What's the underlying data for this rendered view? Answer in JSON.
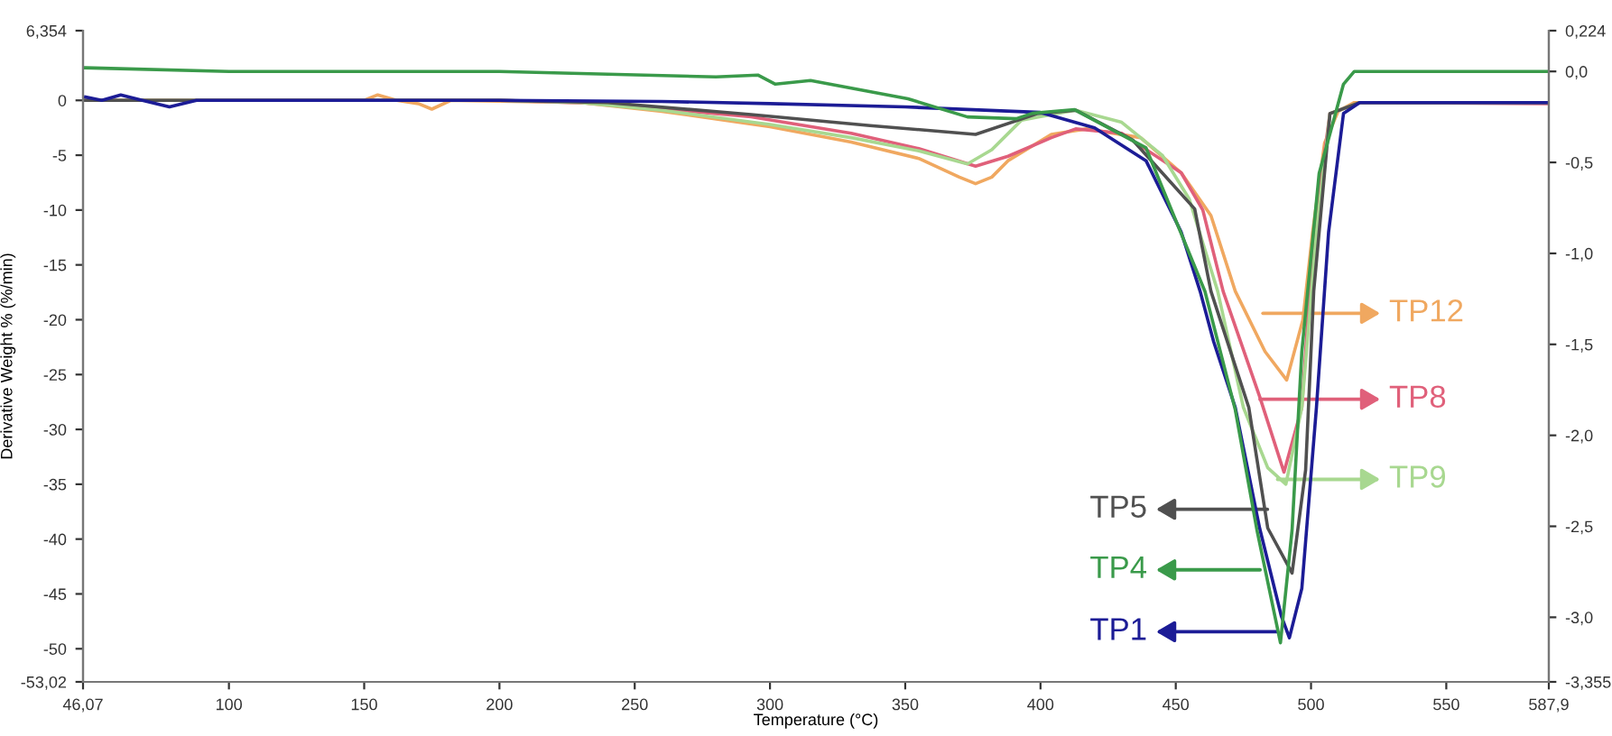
{
  "chart_data": {
    "type": "line",
    "xlabel": "Temperature (°C)",
    "ylabel": "Derivative Weight % (%/min)",
    "xlim": [
      46.07,
      587.9
    ],
    "xticks": [
      {
        "value": 46.07,
        "label": "46,07"
      },
      100,
      150,
      200,
      250,
      300,
      350,
      400,
      450,
      500,
      550,
      {
        "value": 587.9,
        "label": "587,9"
      }
    ],
    "ylim": [
      -53.02,
      6.354
    ],
    "yticks": [
      {
        "value": -53.02,
        "label": "-53,02"
      },
      -50,
      -45,
      -40,
      -35,
      -30,
      -25,
      -20,
      -15,
      -10,
      -5,
      0,
      {
        "value": 6.354,
        "label": "6,354"
      }
    ],
    "y2lim": [
      -3.355,
      0.224
    ],
    "y2ticks": [
      {
        "value": -3.355,
        "label": "-3,355"
      },
      {
        "value": -3.0,
        "label": "-3,0"
      },
      {
        "value": -2.5,
        "label": "-2,5"
      },
      {
        "value": -2.0,
        "label": "-2,0"
      },
      {
        "value": -1.5,
        "label": "-1,5"
      },
      {
        "value": -1.0,
        "label": "-1,0"
      },
      {
        "value": -0.5,
        "label": "-0,5"
      },
      {
        "value": 0.0,
        "label": "0,0"
      },
      {
        "value": 0.224,
        "label": "0,224"
      }
    ],
    "grid": false,
    "marker": "none",
    "line_style": "solid",
    "series": [
      {
        "color": "#f0a860",
        "x": [
          47,
          150,
          155,
          162,
          170,
          175,
          182,
          230,
          260,
          300,
          330,
          355,
          370,
          376,
          382,
          388,
          404,
          417,
          437,
          452,
          463,
          472,
          483,
          491,
          497,
          500.6,
          505,
          510,
          516,
          587
        ],
        "values": [
          0,
          0,
          0.5,
          0,
          -0.3,
          -0.8,
          0,
          -0.2,
          -1.0,
          -2.4,
          -3.8,
          -5.3,
          -7,
          -7.6,
          -7,
          -5.5,
          -3.1,
          -2.6,
          -3.4,
          -6.6,
          -10.5,
          -17.4,
          -22.9,
          -25.5,
          -20,
          -12,
          -3.9,
          -1,
          -0.2,
          -0.2
        ]
      },
      {
        "color": "#e0607a",
        "x": [
          47,
          200,
          240,
          293,
          330,
          355,
          376,
          388,
          404,
          413,
          430,
          452,
          460,
          467.5,
          481,
          490,
          496.6,
          501,
          507,
          518,
          587
        ],
        "values": [
          0,
          0,
          -0.3,
          -1.5,
          -3,
          -4.4,
          -6.0,
          -5.1,
          -3.4,
          -2.6,
          -3.0,
          -6.6,
          -10,
          -17.4,
          -27,
          -33.9,
          -28,
          -12,
          -1.2,
          -0.2,
          -0.3
        ]
      },
      {
        "color": "#a8d890",
        "x": [
          47,
          200,
          230,
          260,
          300,
          330,
          355,
          373,
          382,
          393,
          404,
          413,
          430,
          445,
          455,
          465.5,
          475,
          484,
          490.7,
          496.6,
          502,
          507,
          518,
          587
        ],
        "values": [
          0,
          0,
          -0.2,
          -0.9,
          -2.2,
          -3.4,
          -4.6,
          -5.8,
          -4.5,
          -1.8,
          -1.3,
          -0.9,
          -2,
          -5,
          -9,
          -17.4,
          -28,
          -33.5,
          -35,
          -28,
          -12,
          -1.2,
          -0.2,
          -0.2
        ]
      },
      {
        "color": "#505050",
        "x": [
          47,
          200,
          240,
          293,
          337,
          376,
          399,
          413,
          434,
          457,
          463,
          477,
          484,
          493,
          498,
          501,
          507,
          518,
          587
        ],
        "values": [
          0,
          0,
          -0.2,
          -1.3,
          -2.3,
          -3.1,
          -1.2,
          -0.9,
          -3.6,
          -9.9,
          -17.4,
          -28,
          -39,
          -43.1,
          -33.7,
          -17.4,
          -1.2,
          -0.2,
          -0.2
        ]
      },
      {
        "color": "#3a9a4a",
        "axis": "y2",
        "x": [
          47,
          100,
          200,
          280,
          295.5,
          302,
          315,
          351,
          373,
          391,
          397,
          412.6,
          439,
          460.8,
          472,
          480,
          488.7,
          493,
          496.6,
          503,
          512,
          516,
          587
        ],
        "values": [
          0.02,
          0.0,
          0.0,
          -0.03,
          -0.02,
          -0.07,
          -0.05,
          -0.15,
          -0.25,
          -0.26,
          -0.23,
          -0.21,
          -0.42,
          -1.21,
          -1.86,
          -2.52,
          -3.14,
          -2.52,
          -1.54,
          -0.56,
          -0.07,
          0.0,
          0.0
        ]
      },
      {
        "color": "#1c1c96",
        "x": [
          47,
          53,
          60,
          68,
          78,
          88,
          200,
          260,
          300,
          350,
          400,
          420,
          439,
          452,
          459,
          464,
          472,
          481,
          489,
          492,
          496.6,
          502,
          506.5,
          512,
          518,
          587
        ],
        "values": [
          0.3,
          0,
          0.5,
          0,
          -0.6,
          0,
          0,
          -0.1,
          -0.3,
          -0.6,
          -1.1,
          -2.5,
          -5.5,
          -12,
          -17.4,
          -22,
          -28,
          -39,
          -47,
          -49,
          -44.5,
          -28,
          -12,
          -1.2,
          -0.2,
          -0.2
        ]
      }
    ],
    "annotations": [
      "TP12",
      "TP8",
      "TP9",
      "TP5",
      "TP4",
      "TP1"
    ]
  }
}
